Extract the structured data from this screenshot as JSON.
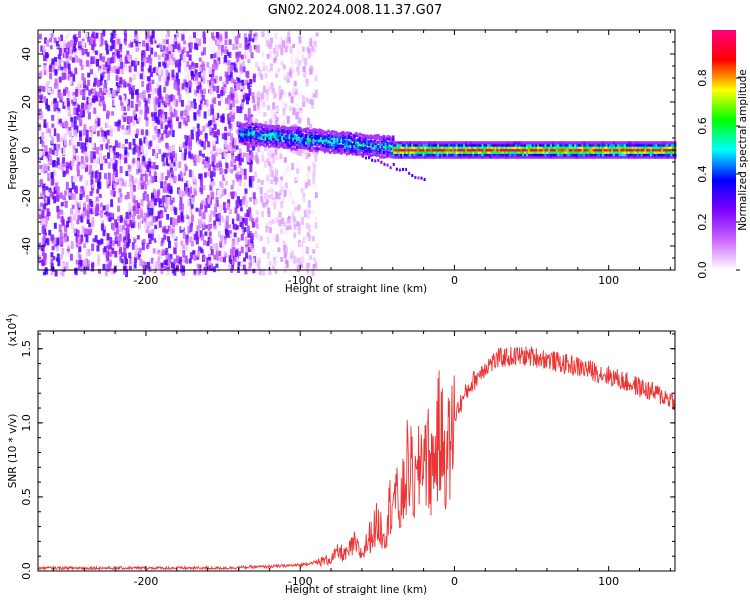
{
  "chart_data": [
    {
      "type": "heatmap",
      "title": "GN02.2024.008.11.37.G07",
      "xlabel": "Height of straight line (km)",
      "ylabel": "Frequency (Hz)",
      "xlim": [
        -270,
        143
      ],
      "ylim": [
        -50,
        50
      ],
      "x_ticks": [
        -200,
        -100,
        0,
        100
      ],
      "y_ticks": [
        -40,
        -20,
        0,
        20,
        40
      ],
      "colorbar": {
        "label": "Normalized spectral amplitude",
        "range": [
          0,
          1
        ],
        "ticks": [
          "0.0",
          "0.2",
          "0.4",
          "0.6",
          "0.8"
        ],
        "colors": [
          "#ffffff",
          "#cc66ff",
          "#7a00ff",
          "#0000ff",
          "#00ffff",
          "#00ff00",
          "#ffff00",
          "#ff0000",
          "#ff0080"
        ]
      },
      "regions": [
        {
          "name": "noise",
          "x_from": -270,
          "x_to": -130,
          "freq_from": -50,
          "freq_to": 50,
          "amplitude": 0.15
        },
        {
          "name": "fading-noise",
          "x_from": -130,
          "x_to": -90,
          "freq_from": -50,
          "freq_to": 50,
          "amplitude": 0.05
        },
        {
          "name": "carrier-onset",
          "x_from": -140,
          "x_to": -40,
          "freq_center_from": 7,
          "freq_center_to": 1,
          "amplitude": 0.5
        },
        {
          "name": "carrier-steady",
          "x_from": -40,
          "x_to": 143,
          "freq_center": 0,
          "amplitude": 0.9
        }
      ]
    },
    {
      "type": "line",
      "xlabel": "Height of straight line (km)",
      "ylabel": "SNR (10 * v/v)",
      "scale_label": "(x10",
      "scale_exp": "4",
      "scale_close": ")",
      "xlim": [
        -270,
        143
      ],
      "ylim": [
        0,
        1.62
      ],
      "x_ticks": [
        -200,
        -100,
        0,
        100
      ],
      "y_ticks": [
        "0.0",
        "0.5",
        "1.0",
        "1.5"
      ],
      "color": "#ee3333",
      "series": [
        {
          "x": [
            -270,
            -200,
            -150,
            -120,
            -100,
            -90,
            -80,
            -75,
            -70,
            -65,
            -60,
            -55,
            -50,
            -45,
            -40,
            -35,
            -30,
            -25,
            -20,
            -15,
            -10,
            -5,
            0,
            10,
            20,
            30,
            40,
            50,
            60,
            70,
            80,
            90,
            100,
            110,
            120,
            130,
            143
          ],
          "values": [
            0.02,
            0.02,
            0.02,
            0.03,
            0.04,
            0.06,
            0.09,
            0.14,
            0.12,
            0.2,
            0.12,
            0.25,
            0.35,
            0.28,
            0.6,
            0.45,
            0.8,
            0.6,
            0.95,
            0.75,
            1.0,
            0.85,
            1.05,
            1.25,
            1.38,
            1.44,
            1.45,
            1.45,
            1.43,
            1.4,
            1.38,
            1.35,
            1.32,
            1.28,
            1.24,
            1.2,
            1.15
          ]
        }
      ]
    }
  ]
}
